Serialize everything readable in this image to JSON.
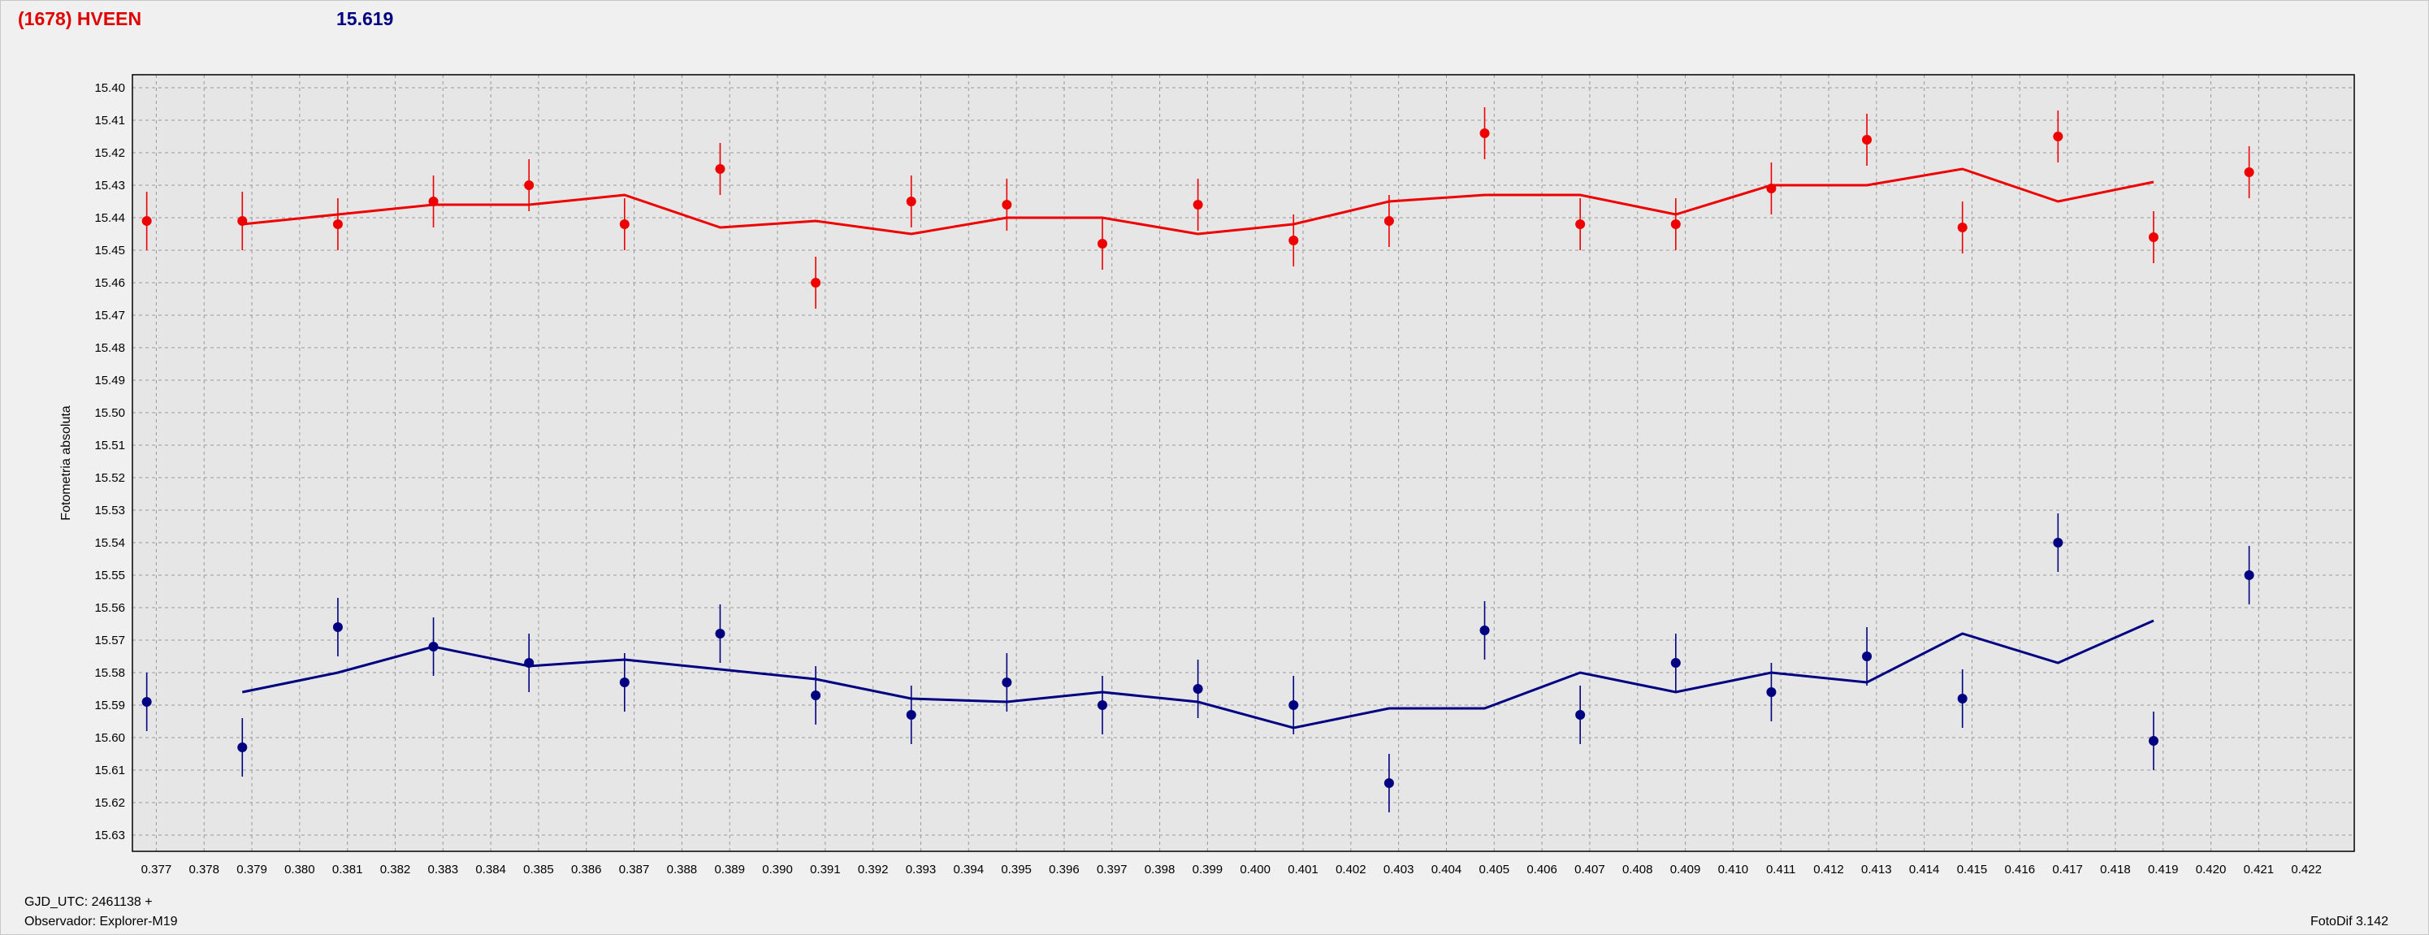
{
  "header": {
    "target": "(1678) HVEEN",
    "magnitude": "15.619"
  },
  "footer": {
    "gjd": "GJD_UTC: 2461138 +",
    "observer": "Observador: Explorer-M19",
    "version": "FotoDif 3.142"
  },
  "colors": {
    "series_red": "#ee0000",
    "series_blue": "#000080",
    "grid": "#999999",
    "plot_background": "#e6e6e6"
  },
  "chart_data": {
    "type": "scatter",
    "ylabel": "Fotometria absoluta",
    "xlabel": "",
    "title": "",
    "xlim": [
      0.3765,
      0.423
    ],
    "ylim": [
      15.635,
      15.396
    ],
    "y_inverted": true,
    "grid": true,
    "x_ticks": [
      "0.377",
      "0.378",
      "0.379",
      "0.380",
      "0.381",
      "0.382",
      "0.383",
      "0.384",
      "0.385",
      "0.386",
      "0.387",
      "0.388",
      "0.389",
      "0.390",
      "0.391",
      "0.392",
      "0.393",
      "0.394",
      "0.395",
      "0.396",
      "0.397",
      "0.398",
      "0.399",
      "0.400",
      "0.401",
      "0.402",
      "0.403",
      "0.404",
      "0.405",
      "0.406",
      "0.407",
      "0.408",
      "0.409",
      "0.410",
      "0.411",
      "0.412",
      "0.413",
      "0.414",
      "0.415",
      "0.416",
      "0.417",
      "0.418",
      "0.419",
      "0.420",
      "0.421",
      "0.422"
    ],
    "y_ticks": [
      "15.40",
      "15.41",
      "15.42",
      "15.43",
      "15.44",
      "15.45",
      "15.46",
      "15.47",
      "15.48",
      "15.49",
      "15.50",
      "15.51",
      "15.52",
      "15.53",
      "15.54",
      "15.55",
      "15.56",
      "15.57",
      "15.58",
      "15.59",
      "15.60",
      "15.61",
      "15.62",
      "15.63"
    ],
    "series": [
      {
        "color": "red",
        "points": [
          {
            "x": 0.3768,
            "y": 15.441,
            "err": 0.009
          },
          {
            "x": 0.3788,
            "y": 15.441,
            "err": 0.009
          },
          {
            "x": 0.3808,
            "y": 15.442,
            "err": 0.008
          },
          {
            "x": 0.3828,
            "y": 15.435,
            "err": 0.008
          },
          {
            "x": 0.3848,
            "y": 15.43,
            "err": 0.008
          },
          {
            "x": 0.3868,
            "y": 15.442,
            "err": 0.008
          },
          {
            "x": 0.3888,
            "y": 15.425,
            "err": 0.008
          },
          {
            "x": 0.3908,
            "y": 15.46,
            "err": 0.008
          },
          {
            "x": 0.3928,
            "y": 15.435,
            "err": 0.008
          },
          {
            "x": 0.3948,
            "y": 15.436,
            "err": 0.008
          },
          {
            "x": 0.3968,
            "y": 15.448,
            "err": 0.008
          },
          {
            "x": 0.3988,
            "y": 15.436,
            "err": 0.008
          },
          {
            "x": 0.4008,
            "y": 15.447,
            "err": 0.008
          },
          {
            "x": 0.4028,
            "y": 15.441,
            "err": 0.008
          },
          {
            "x": 0.4048,
            "y": 15.414,
            "err": 0.008
          },
          {
            "x": 0.4068,
            "y": 15.442,
            "err": 0.008
          },
          {
            "x": 0.4088,
            "y": 15.442,
            "err": 0.008
          },
          {
            "x": 0.4108,
            "y": 15.431,
            "err": 0.008
          },
          {
            "x": 0.4128,
            "y": 15.416,
            "err": 0.008
          },
          {
            "x": 0.4148,
            "y": 15.443,
            "err": 0.008
          },
          {
            "x": 0.4168,
            "y": 15.415,
            "err": 0.008
          },
          {
            "x": 0.4188,
            "y": 15.446,
            "err": 0.008
          },
          {
            "x": 0.4208,
            "y": 15.426,
            "err": 0.008
          }
        ],
        "fit": [
          {
            "x": 0.3788,
            "y": 15.442
          },
          {
            "x": 0.3808,
            "y": 15.439
          },
          {
            "x": 0.3828,
            "y": 15.436
          },
          {
            "x": 0.3848,
            "y": 15.436
          },
          {
            "x": 0.3868,
            "y": 15.433
          },
          {
            "x": 0.3888,
            "y": 15.443
          },
          {
            "x": 0.3908,
            "y": 15.441
          },
          {
            "x": 0.3928,
            "y": 15.445
          },
          {
            "x": 0.3948,
            "y": 15.44
          },
          {
            "x": 0.3968,
            "y": 15.44
          },
          {
            "x": 0.3988,
            "y": 15.445
          },
          {
            "x": 0.4008,
            "y": 15.442
          },
          {
            "x": 0.4028,
            "y": 15.435
          },
          {
            "x": 0.4048,
            "y": 15.433
          },
          {
            "x": 0.4068,
            "y": 15.433
          },
          {
            "x": 0.4088,
            "y": 15.439
          },
          {
            "x": 0.4108,
            "y": 15.43
          },
          {
            "x": 0.4128,
            "y": 15.43
          },
          {
            "x": 0.4148,
            "y": 15.425
          },
          {
            "x": 0.4168,
            "y": 15.435
          },
          {
            "x": 0.4188,
            "y": 15.429
          }
        ]
      },
      {
        "color": "blue",
        "points": [
          {
            "x": 0.3768,
            "y": 15.589,
            "err": 0.009
          },
          {
            "x": 0.3788,
            "y": 15.603,
            "err": 0.009
          },
          {
            "x": 0.3808,
            "y": 15.566,
            "err": 0.009
          },
          {
            "x": 0.3828,
            "y": 15.572,
            "err": 0.009
          },
          {
            "x": 0.3848,
            "y": 15.577,
            "err": 0.009
          },
          {
            "x": 0.3868,
            "y": 15.583,
            "err": 0.009
          },
          {
            "x": 0.3888,
            "y": 15.568,
            "err": 0.009
          },
          {
            "x": 0.3908,
            "y": 15.587,
            "err": 0.009
          },
          {
            "x": 0.3928,
            "y": 15.593,
            "err": 0.009
          },
          {
            "x": 0.3948,
            "y": 15.583,
            "err": 0.009
          },
          {
            "x": 0.3968,
            "y": 15.59,
            "err": 0.009
          },
          {
            "x": 0.3988,
            "y": 15.585,
            "err": 0.009
          },
          {
            "x": 0.4008,
            "y": 15.59,
            "err": 0.009
          },
          {
            "x": 0.4028,
            "y": 15.614,
            "err": 0.009
          },
          {
            "x": 0.4048,
            "y": 15.567,
            "err": 0.009
          },
          {
            "x": 0.4068,
            "y": 15.593,
            "err": 0.009
          },
          {
            "x": 0.4088,
            "y": 15.577,
            "err": 0.009
          },
          {
            "x": 0.4108,
            "y": 15.586,
            "err": 0.009
          },
          {
            "x": 0.4128,
            "y": 15.575,
            "err": 0.009
          },
          {
            "x": 0.4148,
            "y": 15.588,
            "err": 0.009
          },
          {
            "x": 0.4168,
            "y": 15.54,
            "err": 0.009
          },
          {
            "x": 0.4188,
            "y": 15.601,
            "err": 0.009
          },
          {
            "x": 0.4208,
            "y": 15.55,
            "err": 0.009
          }
        ],
        "fit": [
          {
            "x": 0.3788,
            "y": 15.586
          },
          {
            "x": 0.3808,
            "y": 15.58
          },
          {
            "x": 0.3828,
            "y": 15.572
          },
          {
            "x": 0.3848,
            "y": 15.578
          },
          {
            "x": 0.3868,
            "y": 15.576
          },
          {
            "x": 0.3888,
            "y": 15.579
          },
          {
            "x": 0.3908,
            "y": 15.582
          },
          {
            "x": 0.3928,
            "y": 15.588
          },
          {
            "x": 0.3948,
            "y": 15.589
          },
          {
            "x": 0.3968,
            "y": 15.586
          },
          {
            "x": 0.3988,
            "y": 15.589
          },
          {
            "x": 0.4008,
            "y": 15.597
          },
          {
            "x": 0.4028,
            "y": 15.591
          },
          {
            "x": 0.4048,
            "y": 15.591
          },
          {
            "x": 0.4068,
            "y": 15.58
          },
          {
            "x": 0.4088,
            "y": 15.586
          },
          {
            "x": 0.4108,
            "y": 15.58
          },
          {
            "x": 0.4128,
            "y": 15.583
          },
          {
            "x": 0.4148,
            "y": 15.568
          },
          {
            "x": 0.4168,
            "y": 15.577
          },
          {
            "x": 0.4188,
            "y": 15.564
          }
        ]
      }
    ]
  }
}
